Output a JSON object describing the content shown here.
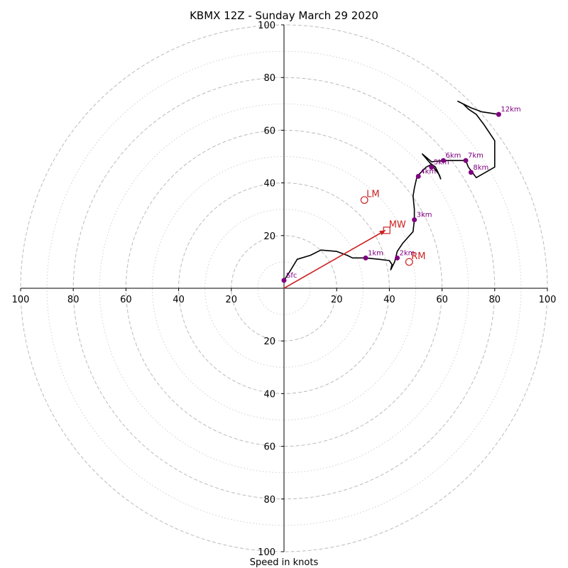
{
  "chart_data": {
    "type": "hodograph",
    "title": "KBMX 12Z - Sunday March 29 2020",
    "xlabel": "Speed in knots",
    "range": [
      -100,
      100
    ],
    "ring_major": [
      20,
      40,
      60,
      80,
      100
    ],
    "ring_minor": [
      10,
      30,
      50,
      70,
      90
    ],
    "tick_values": [
      20,
      40,
      60,
      80,
      100
    ],
    "tick_labels": [
      "20",
      "40",
      "60",
      "80",
      "100"
    ],
    "colors": {
      "trace": "#000000",
      "height_marker": "#800080",
      "motion": "#cc2222",
      "grid": "#bbbbbb"
    },
    "trace": [
      [
        0,
        3
      ],
      [
        2,
        6
      ],
      [
        5,
        11
      ],
      [
        10,
        12.5
      ],
      [
        14,
        14.5
      ],
      [
        20,
        14
      ],
      [
        24,
        12.5
      ],
      [
        26,
        11.5
      ],
      [
        28,
        11.5
      ],
      [
        31,
        11.5
      ],
      [
        36,
        11
      ],
      [
        40,
        10.5
      ],
      [
        41,
        9
      ],
      [
        40.5,
        7
      ],
      [
        42,
        10
      ],
      [
        43,
        14
      ],
      [
        45,
        17
      ],
      [
        49,
        21.5
      ],
      [
        49.5,
        26
      ],
      [
        49.5,
        30
      ],
      [
        49,
        35
      ],
      [
        49.5,
        38
      ],
      [
        50.5,
        42.5
      ],
      [
        52,
        44
      ],
      [
        54,
        46
      ],
      [
        56,
        47
      ],
      [
        57.5,
        45
      ],
      [
        59,
        43
      ],
      [
        59.5,
        41.5
      ],
      [
        58.5,
        44
      ],
      [
        57.5,
        46
      ],
      [
        55.5,
        47.5
      ],
      [
        52.5,
        51
      ],
      [
        56,
        48
      ],
      [
        60.5,
        48.5
      ],
      [
        65,
        48.5
      ],
      [
        69,
        48.5
      ],
      [
        70,
        46
      ],
      [
        71.5,
        44
      ],
      [
        73,
        42
      ],
      [
        80,
        46
      ],
      [
        80,
        56
      ],
      [
        76,
        62
      ],
      [
        73,
        66
      ],
      [
        70,
        68
      ],
      [
        68,
        70
      ],
      [
        66,
        71
      ],
      [
        71,
        68.5
      ],
      [
        75,
        67
      ],
      [
        81.5,
        66
      ]
    ],
    "height_markers": [
      {
        "label": "Sfc",
        "u": 0,
        "v": 3
      },
      {
        "label": "1km",
        "u": 31,
        "v": 11.5
      },
      {
        "label": "2km",
        "u": 43,
        "v": 11.5
      },
      {
        "label": "3km",
        "u": 49.5,
        "v": 26
      },
      {
        "label": "4km",
        "u": 51,
        "v": 42.5
      },
      {
        "label": "5km",
        "u": 56,
        "v": 46
      },
      {
        "label": "6km",
        "u": 60.5,
        "v": 48.5
      },
      {
        "label": "7km",
        "u": 69,
        "v": 48.5
      },
      {
        "label": "8km",
        "u": 71,
        "v": 44
      },
      {
        "label": "12km",
        "u": 81.5,
        "v": 66
      }
    ],
    "storm_motions": [
      {
        "label": "LM",
        "u": 30.5,
        "v": 33.5,
        "marker": "circle"
      },
      {
        "label": "MW",
        "u": 39,
        "v": 22,
        "marker": "square"
      },
      {
        "label": "RM",
        "u": 47.5,
        "v": 10,
        "marker": "circle"
      }
    ],
    "mean_wind_vector": {
      "u": 38.5,
      "v": 22
    }
  }
}
